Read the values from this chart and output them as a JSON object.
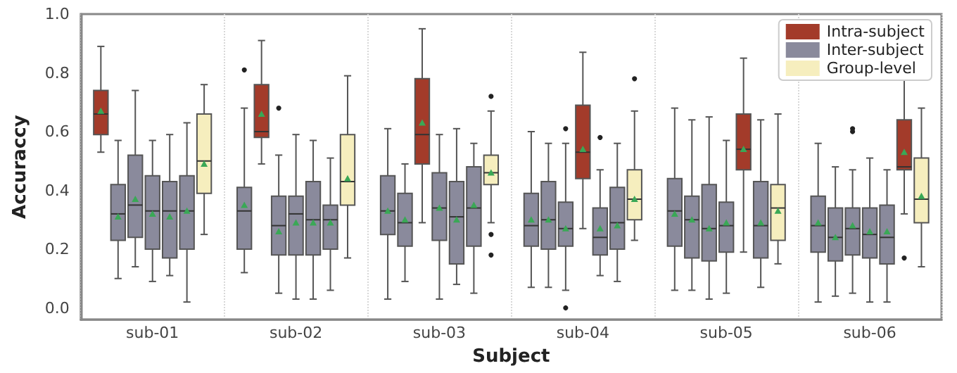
{
  "chart_data": {
    "type": "box",
    "xlabel": "Subject",
    "ylabel": "Accuraccy",
    "categories": [
      "sub-01",
      "sub-02",
      "sub-03",
      "sub-04",
      "sub-05",
      "sub-06"
    ],
    "ylim": [
      -0.04,
      1.0
    ],
    "yticks": [
      {
        "value": 0,
        "label": "0.0"
      },
      {
        "value": 0.2,
        "label": "0.2"
      },
      {
        "value": 0.4,
        "label": "0.4"
      },
      {
        "value": 0.6,
        "label": "0.6"
      },
      {
        "value": 0.8,
        "label": "0.8"
      },
      {
        "value": 1,
        "label": "1.0"
      }
    ],
    "grid": "x",
    "legend": "top right",
    "series": [
      {
        "name": "Intra-subject",
        "color": "#a33b2a",
        "boxes": [
          {
            "low": 0.53,
            "q1": 0.59,
            "median": 0.66,
            "q3": 0.74,
            "high": 0.89,
            "mean": 0.67
          },
          {
            "low": 0.49,
            "q1": 0.58,
            "median": 0.6,
            "q3": 0.76,
            "high": 0.91,
            "mean": 0.66
          },
          {
            "low": 0.29,
            "q1": 0.49,
            "median": 0.59,
            "q3": 0.78,
            "high": 0.95,
            "mean": 0.63
          },
          {
            "low": 0.27,
            "q1": 0.44,
            "median": 0.53,
            "q3": 0.69,
            "high": 0.87,
            "mean": 0.54
          },
          {
            "low": 0.19,
            "q1": 0.47,
            "median": 0.54,
            "q3": 0.66,
            "high": 0.85,
            "mean": 0.54
          },
          {
            "low": 0.32,
            "q1": 0.47,
            "median": 0.48,
            "q3": 0.64,
            "high": 0.82,
            "mean": 0.53,
            "outliers": [
              0.17
            ]
          }
        ]
      },
      {
        "name": "Inter-subject",
        "color": "#8a8a9c",
        "boxes": [
          {
            "low": 0.1,
            "q1": 0.23,
            "median": 0.32,
            "q3": 0.42,
            "high": 0.57,
            "mean": 0.31
          },
          {
            "low": 0.12,
            "q1": 0.2,
            "median": 0.33,
            "q3": 0.41,
            "high": 0.68,
            "mean": 0.35,
            "outliers": [
              0.81
            ]
          },
          {
            "low": 0.03,
            "q1": 0.25,
            "median": 0.33,
            "q3": 0.45,
            "high": 0.61,
            "mean": 0.33
          },
          {
            "low": 0.07,
            "q1": 0.21,
            "median": 0.28,
            "q3": 0.39,
            "high": 0.6,
            "mean": 0.3
          },
          {
            "low": 0.06,
            "q1": 0.21,
            "median": 0.33,
            "q3": 0.44,
            "high": 0.68,
            "mean": 0.32
          },
          {
            "low": 0.02,
            "q1": 0.19,
            "median": 0.28,
            "q3": 0.38,
            "high": 0.56,
            "mean": 0.29
          }
        ]
      },
      {
        "color": "#8a8a9c",
        "boxes": [
          {
            "low": 0.14,
            "q1": 0.24,
            "median": 0.35,
            "q3": 0.52,
            "high": 0.74,
            "mean": 0.37
          },
          {
            "low": 0.05,
            "q1": 0.18,
            "median": 0.28,
            "q3": 0.38,
            "high": 0.52,
            "mean": 0.26,
            "outliers": [
              0.68
            ]
          },
          {
            "low": 0.09,
            "q1": 0.21,
            "median": 0.29,
            "q3": 0.39,
            "high": 0.49,
            "mean": 0.3
          },
          {
            "low": 0.07,
            "q1": 0.2,
            "median": 0.3,
            "q3": 0.43,
            "high": 0.56,
            "mean": 0.3
          },
          {
            "low": 0.06,
            "q1": 0.17,
            "median": 0.3,
            "q3": 0.38,
            "high": 0.64,
            "mean": 0.3
          },
          {
            "low": 0.04,
            "q1": 0.16,
            "median": 0.24,
            "q3": 0.34,
            "high": 0.48,
            "mean": 0.24
          }
        ]
      },
      {
        "color": "#8a8a9c",
        "boxes": [
          {
            "low": 0.09,
            "q1": 0.2,
            "median": 0.33,
            "q3": 0.45,
            "high": 0.57,
            "mean": 0.32
          },
          {
            "low": 0.03,
            "q1": 0.18,
            "median": 0.32,
            "q3": 0.38,
            "high": 0.59,
            "mean": 0.29
          },
          {
            "low": 0.03,
            "q1": 0.23,
            "median": 0.34,
            "q3": 0.46,
            "high": 0.59,
            "mean": 0.34
          },
          {
            "low": 0.06,
            "q1": 0.21,
            "median": 0.27,
            "q3": 0.36,
            "high": 0.56,
            "mean": 0.27,
            "outliers": [
              0.61,
              0.0
            ]
          },
          {
            "low": 0.03,
            "q1": 0.16,
            "median": 0.27,
            "q3": 0.42,
            "high": 0.65,
            "mean": 0.27
          },
          {
            "low": 0.05,
            "q1": 0.18,
            "median": 0.27,
            "q3": 0.34,
            "high": 0.47,
            "mean": 0.28,
            "outliers": [
              0.6,
              0.61
            ]
          }
        ]
      },
      {
        "color": "#8a8a9c",
        "boxes": [
          {
            "low": 0.11,
            "q1": 0.17,
            "median": 0.33,
            "q3": 0.43,
            "high": 0.59,
            "mean": 0.31
          },
          {
            "low": 0.03,
            "q1": 0.18,
            "median": 0.3,
            "q3": 0.43,
            "high": 0.57,
            "mean": 0.29
          },
          {
            "low": 0.08,
            "q1": 0.15,
            "median": 0.31,
            "q3": 0.43,
            "high": 0.61,
            "mean": 0.3
          },
          {
            "low": 0.11,
            "q1": 0.18,
            "median": 0.24,
            "q3": 0.34,
            "high": 0.47,
            "mean": 0.27,
            "outliers": [
              0.58
            ]
          },
          {
            "low": 0.05,
            "q1": 0.19,
            "median": 0.28,
            "q3": 0.36,
            "high": 0.57,
            "mean": 0.29
          },
          {
            "low": 0.02,
            "q1": 0.17,
            "median": 0.25,
            "q3": 0.34,
            "high": 0.51,
            "mean": 0.26
          }
        ]
      },
      {
        "color": "#8a8a9c",
        "boxes": [
          {
            "low": 0.02,
            "q1": 0.2,
            "median": 0.33,
            "q3": 0.45,
            "high": 0.63,
            "mean": 0.33
          },
          {
            "low": 0.06,
            "q1": 0.2,
            "median": 0.3,
            "q3": 0.35,
            "high": 0.51,
            "mean": 0.29
          },
          {
            "low": 0.05,
            "q1": 0.21,
            "median": 0.34,
            "q3": 0.48,
            "high": 0.56,
            "mean": 0.35
          },
          {
            "low": 0.09,
            "q1": 0.2,
            "median": 0.29,
            "q3": 0.41,
            "high": 0.56,
            "mean": 0.28
          },
          {
            "low": 0.07,
            "q1": 0.17,
            "median": 0.28,
            "q3": 0.43,
            "high": 0.64,
            "mean": 0.29
          },
          {
            "low": 0.02,
            "q1": 0.15,
            "median": 0.24,
            "q3": 0.35,
            "high": 0.47,
            "mean": 0.26
          }
        ]
      },
      {
        "name": "Group-level",
        "color": "#f6eebe",
        "boxes": [
          {
            "low": 0.25,
            "q1": 0.39,
            "median": 0.5,
            "q3": 0.66,
            "high": 0.76,
            "mean": 0.49
          },
          {
            "low": 0.17,
            "q1": 0.35,
            "median": 0.43,
            "q3": 0.59,
            "high": 0.79,
            "mean": 0.44
          },
          {
            "low": 0.29,
            "q1": 0.42,
            "median": 0.46,
            "q3": 0.52,
            "high": 0.67,
            "mean": 0.46,
            "outliers": [
              0.72,
              0.25,
              0.18
            ]
          },
          {
            "low": 0.23,
            "q1": 0.3,
            "median": 0.37,
            "q3": 0.47,
            "high": 0.67,
            "mean": 0.37,
            "outliers": [
              0.78
            ]
          },
          {
            "low": 0.15,
            "q1": 0.23,
            "median": 0.34,
            "q3": 0.42,
            "high": 0.66,
            "mean": 0.33
          },
          {
            "low": 0.14,
            "q1": 0.29,
            "median": 0.37,
            "q3": 0.51,
            "high": 0.68,
            "mean": 0.38
          }
        ]
      }
    ]
  }
}
